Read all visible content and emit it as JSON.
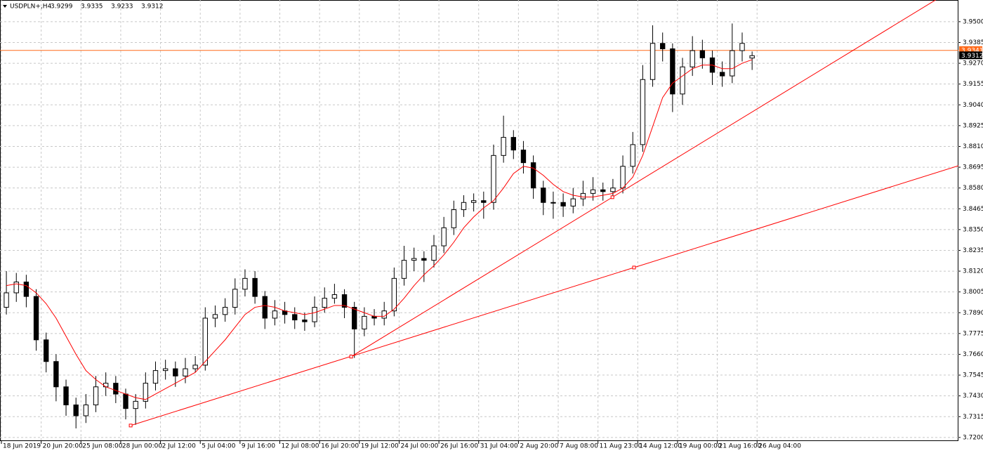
{
  "chart_data": {
    "type": "candlestick",
    "symbol": "USDPLN+,H4",
    "x": [
      2,
      6,
      10,
      14,
      18,
      22,
      26,
      30,
      34,
      38,
      42,
      46,
      50,
      54,
      58,
      62,
      66,
      70,
      74,
      78,
      82,
      86,
      90,
      94,
      98,
      102,
      106,
      110,
      114,
      118,
      122,
      126,
      130,
      134,
      138,
      142,
      146,
      150,
      154,
      158,
      162,
      166,
      170,
      174,
      178,
      182,
      186,
      190,
      194,
      198,
      202,
      206,
      210,
      214,
      218,
      222,
      226,
      230,
      234,
      238,
      242,
      246,
      250,
      254,
      258,
      262,
      266,
      270,
      274,
      278,
      282,
      286,
      290,
      294,
      298,
      302
    ],
    "open": [
      3.792,
      3.8,
      3.806,
      3.798,
      3.774,
      3.762,
      3.748,
      3.738,
      3.732,
      3.738,
      3.748,
      3.75,
      3.744,
      3.736,
      3.74,
      3.75,
      3.757,
      3.758,
      3.754,
      3.758,
      3.76,
      3.786,
      3.788,
      3.792,
      3.802,
      3.808,
      3.798,
      3.786,
      3.79,
      3.788,
      3.785,
      3.784,
      3.792,
      3.797,
      3.799,
      3.792,
      3.78,
      3.787,
      3.786,
      3.79,
      3.808,
      3.818,
      3.819,
      3.818,
      3.826,
      3.836,
      3.846,
      3.85,
      3.851,
      3.85,
      3.876,
      3.886,
      3.879,
      3.872,
      3.858,
      3.85,
      3.85,
      3.848,
      3.852,
      3.855,
      3.857,
      3.856,
      3.858,
      3.87,
      3.882,
      3.918,
      3.938,
      3.935,
      3.91,
      3.925,
      3.934,
      3.93,
      3.922,
      3.92,
      3.934,
      3.9299
    ],
    "high": [
      3.812,
      3.811,
      3.81,
      3.802,
      3.778,
      3.766,
      3.752,
      3.742,
      3.744,
      3.754,
      3.756,
      3.754,
      3.747,
      3.744,
      3.756,
      3.762,
      3.763,
      3.762,
      3.764,
      3.765,
      3.792,
      3.793,
      3.797,
      3.808,
      3.813,
      3.812,
      3.801,
      3.796,
      3.795,
      3.792,
      3.789,
      3.798,
      3.803,
      3.805,
      3.802,
      3.795,
      3.792,
      3.791,
      3.795,
      3.814,
      3.826,
      3.825,
      3.823,
      3.832,
      3.842,
      3.851,
      3.854,
      3.855,
      3.856,
      3.882,
      3.898,
      3.89,
      3.884,
      3.876,
      3.862,
      3.856,
      3.855,
      3.858,
      3.862,
      3.864,
      3.861,
      3.863,
      3.876,
      3.889,
      3.926,
      3.948,
      3.944,
      3.938,
      3.93,
      3.942,
      3.94,
      3.934,
      3.928,
      3.949,
      3.944,
      3.9335
    ],
    "low": [
      3.788,
      3.795,
      3.792,
      3.768,
      3.756,
      3.74,
      3.732,
      3.725,
      3.728,
      3.734,
      3.743,
      3.739,
      3.73,
      3.727,
      3.736,
      3.746,
      3.752,
      3.748,
      3.75,
      3.756,
      3.757,
      3.781,
      3.784,
      3.788,
      3.798,
      3.794,
      3.78,
      3.782,
      3.783,
      3.78,
      3.779,
      3.781,
      3.789,
      3.794,
      3.786,
      3.764,
      3.776,
      3.782,
      3.782,
      3.787,
      3.804,
      3.812,
      3.806,
      3.814,
      3.822,
      3.832,
      3.842,
      3.845,
      3.841,
      3.846,
      3.872,
      3.874,
      3.866,
      3.852,
      3.843,
      3.841,
      3.842,
      3.844,
      3.848,
      3.851,
      3.851,
      3.852,
      3.855,
      3.866,
      3.878,
      3.914,
      3.928,
      3.9,
      3.904,
      3.92,
      3.924,
      3.915,
      3.914,
      3.916,
      3.928,
      3.9233
    ],
    "close": [
      3.8,
      3.806,
      3.798,
      3.774,
      3.762,
      3.748,
      3.738,
      3.732,
      3.738,
      3.748,
      3.75,
      3.744,
      3.736,
      3.74,
      3.75,
      3.757,
      3.758,
      3.754,
      3.758,
      3.76,
      3.786,
      3.788,
      3.792,
      3.802,
      3.808,
      3.798,
      3.786,
      3.79,
      3.788,
      3.785,
      3.784,
      3.792,
      3.797,
      3.799,
      3.792,
      3.78,
      3.787,
      3.786,
      3.79,
      3.808,
      3.818,
      3.819,
      3.818,
      3.826,
      3.836,
      3.846,
      3.85,
      3.851,
      3.85,
      3.876,
      3.886,
      3.879,
      3.872,
      3.858,
      3.85,
      3.85,
      3.848,
      3.852,
      3.855,
      3.857,
      3.856,
      3.858,
      3.87,
      3.882,
      3.918,
      3.938,
      3.935,
      3.91,
      3.925,
      3.934,
      3.93,
      3.922,
      3.92,
      3.934,
      3.938,
      3.9312
    ],
    "ma": {
      "color": "#ff0000",
      "values": [
        3.804,
        3.805,
        3.804,
        3.8,
        3.794,
        3.786,
        3.776,
        3.766,
        3.757,
        3.752,
        3.748,
        3.746,
        3.744,
        3.742,
        3.741,
        3.744,
        3.747,
        3.75,
        3.753,
        3.756,
        3.762,
        3.768,
        3.774,
        3.781,
        3.788,
        3.792,
        3.793,
        3.792,
        3.79,
        3.789,
        3.788,
        3.789,
        3.791,
        3.793,
        3.793,
        3.791,
        3.789,
        3.787,
        3.787,
        3.791,
        3.797,
        3.804,
        3.81,
        3.815,
        3.821,
        3.828,
        3.836,
        3.842,
        3.847,
        3.851,
        3.858,
        3.866,
        3.87,
        3.869,
        3.865,
        3.86,
        3.856,
        3.854,
        3.853,
        3.853,
        3.854,
        3.855,
        3.858,
        3.864,
        3.876,
        3.892,
        3.908,
        3.916,
        3.92,
        3.924,
        3.926,
        3.926,
        3.924,
        3.924,
        3.927,
        3.929
      ]
    },
    "trendlines": [
      {
        "color": "#ff0000",
        "points": [
          [
            52,
            3.7266
          ],
          [
            254.5,
            3.814
          ]
        ]
      },
      {
        "color": "#ff0000",
        "points": [
          [
            140.7,
            3.7647
          ],
          [
            245.8,
            3.8529
          ]
        ]
      }
    ],
    "level_line": {
      "value": 3.9341,
      "color": "#ff6a1a"
    },
    "xlim": [
      0,
      385
    ],
    "ylim": [
      3.718,
      3.962
    ],
    "xticks": [
      {
        "value": 0,
        "label": "18 Jun 2019"
      },
      {
        "value": 16,
        "label": "20 Jun 20:00"
      },
      {
        "value": 32,
        "label": "25 Jun 08:00"
      },
      {
        "value": 48,
        "label": "28 Jun 00:00"
      },
      {
        "value": 64,
        "label": "2 Jul 12:00"
      },
      {
        "value": 80,
        "label": "5 Jul 04:00"
      },
      {
        "value": 96,
        "label": "9 Jul 16:00"
      },
      {
        "value": 112,
        "label": "12 Jul 08:00"
      },
      {
        "value": 128,
        "label": "16 Jul 20:00"
      },
      {
        "value": 144,
        "label": "19 Jul 12:00"
      },
      {
        "value": 160,
        "label": "24 Jul 00:00"
      },
      {
        "value": 176,
        "label": "26 Jul 16:00"
      },
      {
        "value": 192,
        "label": "31 Jul 04:00"
      },
      {
        "value": 208,
        "label": "2 Aug 20:00"
      },
      {
        "value": 224,
        "label": "7 Aug 08:00"
      },
      {
        "value": 240,
        "label": "11 Aug 23:00"
      },
      {
        "value": 256,
        "label": "14 Aug 12:00"
      },
      {
        "value": 272,
        "label": "19 Aug 00:00"
      },
      {
        "value": 288,
        "label": "21 Aug 16:00"
      },
      {
        "value": 304,
        "label": "26 Aug 04:00"
      }
    ],
    "yticks": [
      {
        "value": 3.72,
        "label": "3.7200"
      },
      3.7315,
      {
        "value": 3.743,
        "label": "3.7430"
      },
      3.7545,
      {
        "value": 3.766,
        "label": "3.7660"
      },
      3.7775,
      {
        "value": 3.789,
        "label": "3.7890"
      },
      3.8005,
      {
        "value": 3.812,
        "label": "3.8120"
      },
      3.8235,
      {
        "value": 3.835,
        "label": "3.8350"
      },
      3.8465,
      {
        "value": 3.858,
        "label": "3.8580"
      },
      3.8695,
      {
        "value": 3.881,
        "label": "3.8810"
      },
      3.8925,
      {
        "value": 3.904,
        "label": "3.9040"
      },
      3.9155,
      {
        "value": 3.927,
        "label": "3.9270"
      },
      3.9385,
      {
        "value": 3.95,
        "label": "3.9500"
      }
    ],
    "grid": true
  }
}
